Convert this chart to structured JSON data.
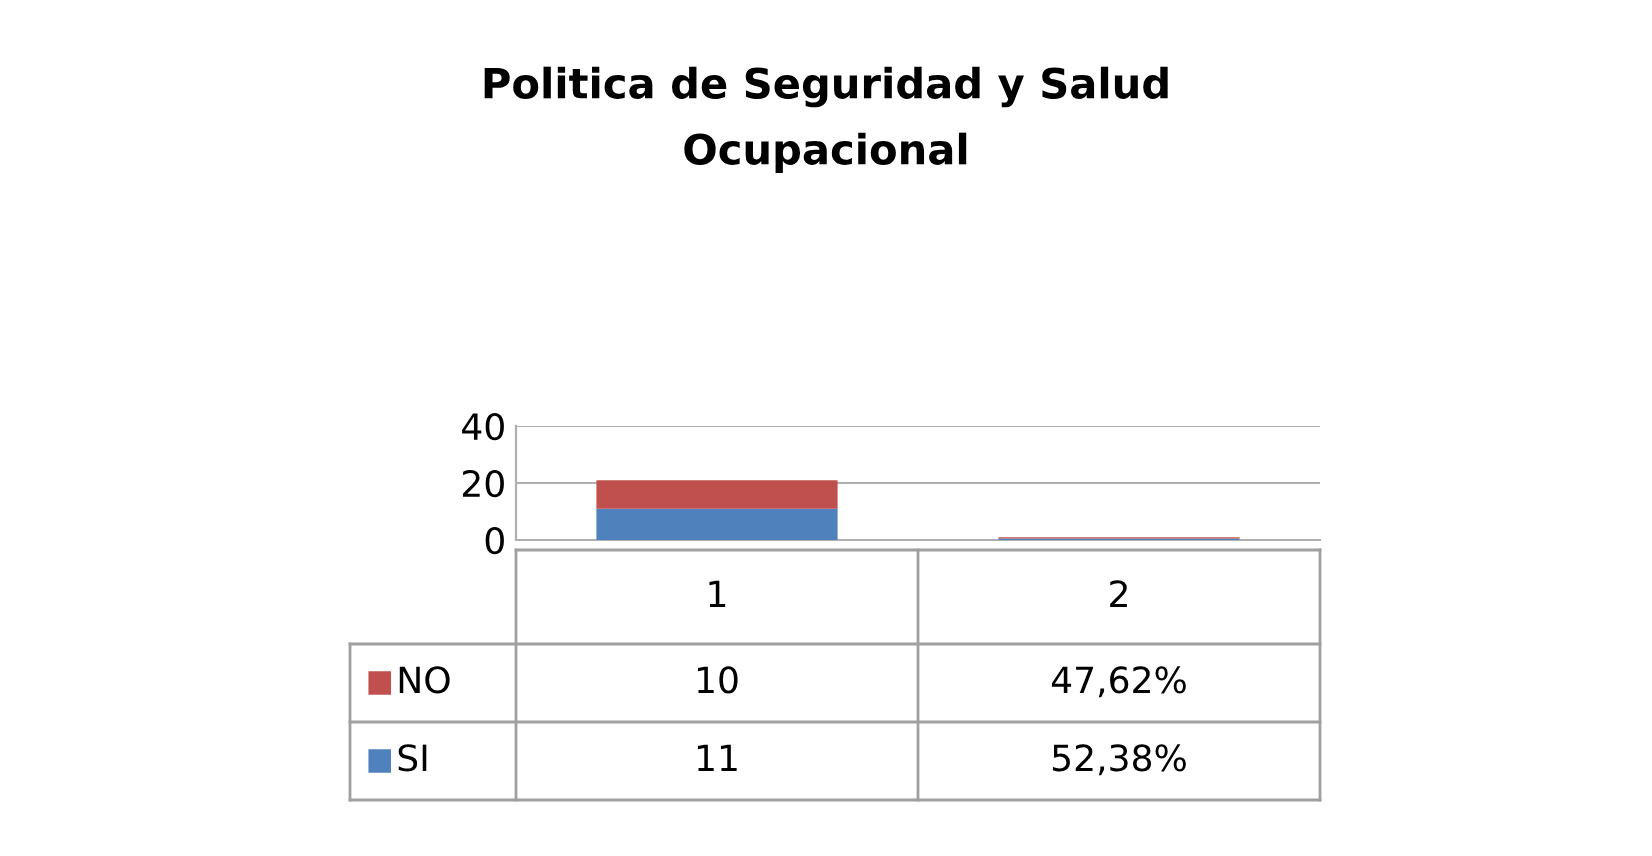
{
  "chart_data": {
    "type": "bar",
    "title": "Politica de Seguridad y Salud\nOcupacional",
    "categories": [
      "1",
      "2"
    ],
    "stacked": true,
    "series": [
      {
        "name": "SI",
        "color": "#4f81bd",
        "values": [
          11,
          0.5238
        ],
        "value_labels": [
          "11",
          "52,38%"
        ]
      },
      {
        "name": "NO",
        "color": "#c0504d",
        "values": [
          10,
          0.4762
        ],
        "value_labels": [
          "10",
          "47,62%"
        ]
      }
    ],
    "ylim": [
      0,
      40
    ],
    "yticks": [
      0,
      20,
      40
    ],
    "grid": "y",
    "legend": "bottom"
  }
}
